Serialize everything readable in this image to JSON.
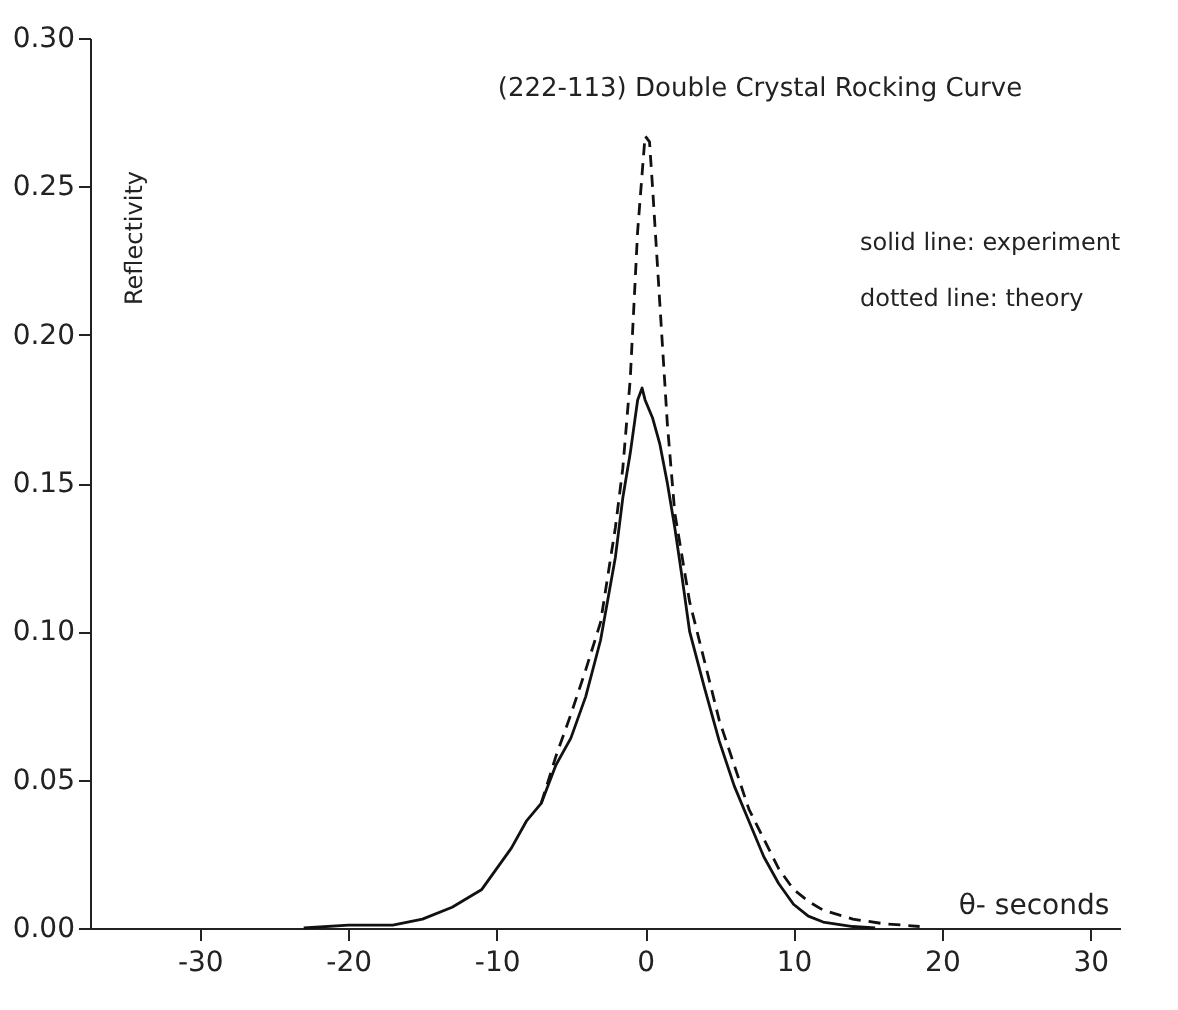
{
  "chart_data": {
    "type": "line",
    "title": "(222-113)    Double    Crystal  Rocking   Curve",
    "xlabel": "θ- seconds",
    "ylabel": "Reflectivity",
    "annotations": [
      "solid  line: experiment",
      "dotted  line: theory"
    ],
    "xlim": [
      -37.4,
      32
    ],
    "ylim": [
      0,
      0.3
    ],
    "xticks": [
      -30,
      -20,
      -10,
      0,
      10,
      20,
      30
    ],
    "yticks": [
      {
        "value": 0,
        "label": "0.00"
      },
      {
        "value": 0.05,
        "label": "0.05"
      },
      {
        "value": 0.1,
        "label": "0.10"
      },
      {
        "value": 0.15,
        "label": "0.15"
      },
      {
        "value": 0.2,
        "label": "0.20"
      },
      {
        "value": 0.25,
        "label": "0.25"
      },
      {
        "value": 0.3,
        "label": "0.30"
      }
    ],
    "grid": false,
    "marker": "none",
    "series": [
      {
        "color": "#111111",
        "line_style": "solid",
        "x": [
          -23,
          -20,
          -17,
          -15,
          -13,
          -11,
          -10,
          -9,
          -8,
          -7,
          -6,
          -5,
          -4,
          -3,
          -2,
          -1.5,
          -1,
          -0.5,
          -0.2,
          0,
          0.5,
          1,
          1.5,
          2,
          2.5,
          3,
          4,
          5,
          6,
          7,
          8,
          9,
          10,
          11,
          12,
          14,
          15.5
        ],
        "values": [
          0,
          0.001,
          0.001,
          0.003,
          0.007,
          0.013,
          0.02,
          0.027,
          0.036,
          0.042,
          0.055,
          0.064,
          0.078,
          0.097,
          0.125,
          0.145,
          0.16,
          0.178,
          0.182,
          0.178,
          0.172,
          0.163,
          0.15,
          0.135,
          0.118,
          0.1,
          0.081,
          0.063,
          0.048,
          0.036,
          0.024,
          0.015,
          0.008,
          0.004,
          0.002,
          0.0005,
          0
        ]
      },
      {
        "color": "#111111",
        "line_style": "dashed",
        "x": [
          -7,
          -6,
          -5,
          -4,
          -3,
          -2,
          -1.5,
          -1,
          -0.5,
          0,
          0.3,
          0.5,
          1,
          1.5,
          2,
          3,
          4,
          5,
          6,
          7,
          8,
          9,
          10,
          11,
          12,
          14,
          16,
          18.5
        ],
        "values": [
          0.042,
          0.058,
          0.072,
          0.087,
          0.103,
          0.135,
          0.155,
          0.185,
          0.235,
          0.267,
          0.265,
          0.25,
          0.21,
          0.17,
          0.14,
          0.11,
          0.09,
          0.07,
          0.055,
          0.04,
          0.03,
          0.02,
          0.013,
          0.009,
          0.006,
          0.003,
          0.0015,
          0.0005
        ]
      }
    ]
  }
}
